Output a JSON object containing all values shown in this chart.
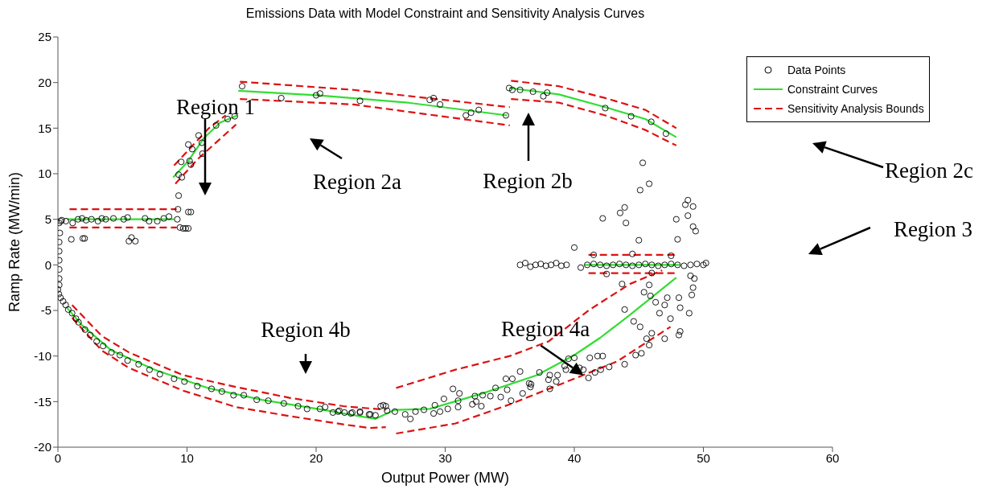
{
  "chart_data": {
    "type": "scatter",
    "title": "Emissions Data with Model Constraint and Sensitivity Analysis Curves",
    "xlabel": "Output Power (MW)",
    "ylabel": "Ramp Rate (MW/min)",
    "xlim": [
      0,
      60
    ],
    "xticks": [
      0,
      10,
      20,
      30,
      40,
      50,
      60
    ],
    "ylim": [
      -20,
      25
    ],
    "yticks": [
      -20,
      -15,
      -10,
      -5,
      0,
      5,
      10,
      15,
      20,
      25
    ],
    "legend": "top right",
    "annotations": [
      "Region 1",
      "Region 2a",
      "Region 2b",
      "Region 2c",
      "Region 3",
      "Region 4b",
      {
        "text": "Region 4a",
        "x": 40.7,
        "y": -12.1
      }
    ],
    "series": [
      {
        "name": "Data Points",
        "marker": "circle",
        "color": "#000000",
        "x": [
          0.1,
          0.15,
          0.1,
          0.1,
          0.1,
          0.1,
          0.1,
          0.1,
          0.2,
          0.3,
          0.62,
          1.14,
          1.56,
          1.87,
          2.18,
          2.6,
          3.1,
          3.4,
          3.7,
          4.3,
          5.1,
          5.4,
          6.75,
          7.06,
          7.7,
          8.2,
          8.6,
          1.04,
          1.93,
          2.07,
          5.5,
          5.7,
          6.0,
          9.25,
          9.45,
          9.7,
          9.9,
          10.1,
          10.1,
          10.3,
          9.35,
          9.3,
          9.35,
          9.6,
          9.55,
          10.2,
          10.3,
          10.1,
          10.4,
          10.9,
          11.15,
          11.2,
          12.25,
          13.15,
          13.7,
          14.27,
          17.3,
          20.0,
          20.3,
          23.4,
          28.8,
          29.1,
          29.6,
          31.6,
          32.0,
          32.6,
          34.7,
          34.95,
          35.2,
          35.8,
          36.8,
          37.6,
          37.9,
          42.4,
          44.4,
          45.96,
          47.1,
          45.3,
          45.8,
          45.1,
          48.8,
          48.6,
          49.2,
          48.8,
          47.9,
          43.55,
          43.9,
          44.0,
          42.2,
          49.2,
          49.4,
          48.0,
          45.0,
          40.0,
          35.8,
          36.2,
          36.6,
          37.0,
          37.4,
          37.8,
          38.2,
          38.6,
          39.0,
          39.4,
          40.5,
          41.0,
          41.5,
          42.0,
          42.5,
          43.0,
          43.5,
          44.0,
          44.5,
          45.0,
          45.5,
          46.0,
          46.5,
          47.0,
          47.5,
          48.0,
          48.5,
          49.0,
          49.5,
          50.0,
          41.5,
          44.5,
          47.5,
          42.5,
          46.0,
          49.0,
          50.2,
          43.7,
          43.9,
          45.4,
          44.6,
          45.1,
          45.6,
          44.75,
          45.2,
          45.8,
          46.0,
          46.6,
          47.0,
          47.2,
          47.45,
          47.0,
          48.1,
          48.2,
          48.2,
          48.9,
          49.1,
          49.2,
          48.1,
          46.3,
          45.9,
          45.8,
          49.3,
          43.9,
          42.7,
          42.05,
          41.1,
          41.6,
          41.2,
          41.8,
          42.2,
          40.0,
          39.55,
          40.4,
          40.7,
          39.25,
          39.35,
          38.7,
          38.6,
          38.1,
          38.0,
          38.1,
          37.3,
          36.65,
          36.5,
          36.6,
          36.0,
          35.8,
          35.2,
          34.7,
          34.8,
          34.3,
          35.1,
          33.9,
          32.9,
          33.5,
          32.3,
          32.4,
          32.1,
          32.8,
          30.6,
          31.1,
          31.0,
          31.0,
          29.9,
          30.2,
          29.6,
          29.2,
          29.1,
          28.35,
          27.7,
          27.3,
          26.9,
          26.1,
          25.5,
          25.0,
          25.4,
          24.6,
          24.1,
          23.4,
          22.7,
          22.2,
          21.8,
          21.3,
          20.7,
          0.0,
          0.07,
          0.2,
          0.4,
          0.6,
          0.8,
          1.1,
          1.4,
          1.6,
          2.1,
          2.5,
          3.0,
          3.5,
          4.15,
          4.8,
          5.4,
          6.25,
          7.1,
          7.9,
          9.0,
          9.8,
          10.8,
          11.9,
          12.7,
          13.6,
          14.4,
          15.4,
          16.3,
          17.5,
          18.6,
          19.3,
          20.3,
          21.7,
          22.8,
          23.4,
          24.2,
          25.2
        ],
        "values": [
          4.6,
          3.5,
          2.5,
          1.5,
          0.5,
          -0.5,
          -1.5,
          -2.2,
          4.8,
          4.9,
          4.8,
          4.6,
          5.0,
          5.1,
          4.9,
          5.0,
          4.8,
          5.1,
          5.0,
          5.1,
          5.0,
          5.2,
          5.1,
          4.8,
          4.8,
          5.1,
          5.3,
          2.8,
          2.9,
          2.9,
          2.6,
          3.0,
          2.6,
          5.0,
          4.1,
          4.0,
          4.0,
          4.0,
          5.8,
          5.8,
          7.6,
          6.1,
          9.9,
          9.6,
          11.3,
          11.4,
          11.0,
          13.2,
          12.7,
          14.2,
          13.4,
          12.2,
          15.3,
          16.0,
          16.3,
          19.6,
          18.3,
          18.6,
          18.8,
          18.0,
          18.1,
          18.3,
          17.6,
          16.4,
          16.7,
          17.0,
          16.4,
          19.4,
          19.2,
          19.2,
          19.0,
          18.5,
          18.9,
          17.2,
          16.3,
          15.7,
          14.4,
          11.2,
          8.9,
          8.2,
          7.1,
          6.6,
          6.4,
          5.4,
          5.0,
          5.7,
          6.3,
          4.6,
          5.1,
          4.2,
          3.7,
          2.8,
          2.7,
          1.9,
          0.0,
          0.2,
          -0.2,
          0.0,
          0.1,
          -0.1,
          0.0,
          0.2,
          -0.1,
          0.0,
          -0.3,
          0.0,
          0.1,
          0.0,
          -0.1,
          0.0,
          0.1,
          0.0,
          -0.1,
          0.0,
          0.1,
          0.0,
          -0.1,
          0.0,
          0.1,
          0.0,
          -0.1,
          0.0,
          0.1,
          0.0,
          1.1,
          1.2,
          1.0,
          -1.0,
          -0.9,
          -1.2,
          0.2,
          -2.1,
          -4.9,
          -3.0,
          -6.2,
          -6.8,
          -8.1,
          -9.9,
          -9.7,
          -8.8,
          -7.5,
          -5.3,
          -4.4,
          -3.6,
          -5.9,
          -8.1,
          -7.7,
          -7.3,
          -4.7,
          -5.3,
          -3.3,
          -2.5,
          -3.6,
          -4.1,
          -3.4,
          -2.2,
          -1.5,
          -10.9,
          -11.2,
          -11.5,
          -12.4,
          -11.8,
          -10.2,
          -10.0,
          -10.0,
          -10.2,
          -10.3,
          -11.3,
          -11.5,
          -11.1,
          -11.5,
          -12.1,
          -12.8,
          -13.6,
          -12.6,
          -12.1,
          -11.8,
          -13.1,
          -13.0,
          -13.4,
          -14.1,
          -11.7,
          -12.5,
          -12.5,
          -13.7,
          -14.5,
          -14.9,
          -13.5,
          -14.3,
          -14.4,
          -14.4,
          -15.0,
          -15.3,
          -15.5,
          -13.6,
          -14.1,
          -14.9,
          -15.6,
          -14.7,
          -15.8,
          -16.1,
          -15.4,
          -16.3,
          -15.9,
          -16.1,
          -16.9,
          -16.4,
          -16.1,
          -16.0,
          -15.5,
          -15.5,
          -16.5,
          -16.4,
          -16.2,
          -16.3,
          -16.2,
          -16.0,
          -16.2,
          -15.6,
          -2.7,
          -3.2,
          -3.6,
          -4.0,
          -4.4,
          -4.9,
          -5.3,
          -5.9,
          -6.3,
          -7.1,
          -7.7,
          -8.4,
          -8.9,
          -9.6,
          -9.9,
          -10.5,
          -10.9,
          -11.5,
          -12.0,
          -12.5,
          -12.8,
          -13.3,
          -13.6,
          -13.9,
          -14.3,
          -14.3,
          -14.8,
          -14.9,
          -15.2,
          -15.5,
          -15.8,
          -15.8,
          -16.1,
          -16.2,
          -16.1,
          -16.4,
          -15.4
        ]
      },
      {
        "name": "Constraint Curves",
        "type": "line",
        "line_style": "solid",
        "color": "#33dd33",
        "x": [
          0.7,
          9.0
        ],
        "values": [
          5.0,
          5.0
        ]
      },
      {
        "type": "line",
        "line_style": "solid",
        "color": "#33dd33",
        "x": [
          8.93,
          10.1,
          11.3,
          12.56,
          13.9
        ],
        "values": [
          9.6,
          11.4,
          13.9,
          15.6,
          16.4
        ]
      },
      {
        "type": "line",
        "line_style": "solid",
        "color": "#33dd33",
        "x": [
          13.97,
          20.25,
          27.1,
          34.8
        ],
        "values": [
          19.1,
          18.6,
          17.8,
          16.4
        ]
      },
      {
        "type": "line",
        "line_style": "solid",
        "color": "#33dd33",
        "x": [
          35.0,
          38.8,
          42.4,
          45.5,
          47.9
        ],
        "values": [
          19.4,
          18.7,
          17.3,
          16.0,
          14.0
        ]
      },
      {
        "type": "line",
        "line_style": "solid",
        "color": "#33dd33",
        "x": [
          40.8,
          48.2
        ],
        "values": [
          0.0,
          0.0
        ]
      },
      {
        "type": "line",
        "line_style": "solid",
        "color": "#33dd33",
        "x": [
          0.7,
          1.85,
          4.15,
          7.5,
          11.6,
          15.8,
          20.1,
          24.6,
          26.1,
          28.8,
          32.9,
          37.1,
          40.0,
          42.0,
          44.3,
          47.9
        ],
        "values": [
          -4.7,
          -6.6,
          -9.4,
          -11.5,
          -13.5,
          -14.8,
          -15.8,
          -16.9,
          -15.9,
          -15.8,
          -14.1,
          -12.1,
          -9.9,
          -8.0,
          -5.5,
          -1.4
        ]
      },
      {
        "name": "Sensitivity Analysis Bounds",
        "type": "line",
        "line_style": "dashed",
        "color": "#dd1111",
        "x": [
          0.9,
          9.2
        ],
        "values": [
          6.1,
          6.1
        ]
      },
      {
        "type": "line",
        "line_style": "dashed",
        "color": "#dd1111",
        "x": [
          0.9,
          9.2
        ],
        "values": [
          4.1,
          4.1
        ]
      },
      {
        "type": "line",
        "line_style": "dashed",
        "color": "#dd1111",
        "x": [
          9.0,
          10.5,
          11.7,
          13.0
        ],
        "values": [
          10.9,
          13.2,
          15.0,
          16.4
        ]
      },
      {
        "type": "line",
        "line_style": "dashed",
        "color": "#dd1111",
        "x": [
          9.1,
          10.9,
          13.8
        ],
        "values": [
          8.9,
          11.7,
          15.4
        ]
      },
      {
        "type": "line",
        "line_style": "dashed",
        "color": "#dd1111",
        "x": [
          14.1,
          22.9,
          35.0
        ],
        "values": [
          20.1,
          19.2,
          17.3
        ]
      },
      {
        "type": "line",
        "line_style": "dashed",
        "color": "#dd1111",
        "x": [
          14.1,
          22.9,
          35.0
        ],
        "values": [
          18.2,
          17.6,
          15.3
        ]
      },
      {
        "type": "line",
        "line_style": "dashed",
        "color": "#dd1111",
        "x": [
          35.1,
          38.8,
          42.4,
          45.5,
          47.9
        ],
        "values": [
          20.2,
          19.6,
          18.3,
          17.0,
          15.0
        ]
      },
      {
        "type": "line",
        "line_style": "dashed",
        "color": "#dd1111",
        "x": [
          35.1,
          38.8,
          42.4,
          45.5,
          47.9
        ],
        "values": [
          18.2,
          17.8,
          16.4,
          14.8,
          13.1
        ]
      },
      {
        "type": "line",
        "line_style": "dashed",
        "color": "#dd1111",
        "x": [
          41.1,
          47.9
        ],
        "values": [
          1.1,
          1.1
        ]
      },
      {
        "type": "line",
        "line_style": "dashed",
        "color": "#dd1111",
        "x": [
          41.1,
          47.9
        ],
        "values": [
          -0.9,
          -0.9
        ]
      },
      {
        "type": "line",
        "line_style": "dashed",
        "color": "#dd1111",
        "x": [
          26.2,
          30.8,
          35.0,
          38.0,
          41.2,
          44.3,
          46.8
        ],
        "values": [
          -13.5,
          -11.5,
          -10.0,
          -8.4,
          -4.9,
          -2.1,
          -0.6
        ]
      },
      {
        "type": "line",
        "line_style": "dashed",
        "color": "#dd1111",
        "x": [
          26.2,
          30.8,
          35.0,
          39.1,
          43.3,
          47.45
        ],
        "values": [
          -18.5,
          -17.4,
          -15.3,
          -13.0,
          -10.6,
          -6.8
        ]
      },
      {
        "type": "line",
        "line_style": "dashed",
        "color": "#dd1111",
        "x": [
          1.1,
          3.4,
          5.5,
          9.7,
          13.8,
          18.0,
          22.1,
          25.4
        ],
        "values": [
          -4.4,
          -7.8,
          -9.6,
          -12.1,
          -13.4,
          -14.6,
          -15.5,
          -15.9
        ]
      },
      {
        "type": "line",
        "line_style": "dashed",
        "color": "#dd1111",
        "x": [
          1.1,
          3.4,
          5.5,
          9.7,
          13.8,
          18.0,
          22.1,
          24.2,
          25.4
        ],
        "values": [
          -5.8,
          -9.4,
          -11.3,
          -13.8,
          -15.6,
          -16.6,
          -17.5,
          -17.9,
          -17.8
        ]
      }
    ]
  }
}
